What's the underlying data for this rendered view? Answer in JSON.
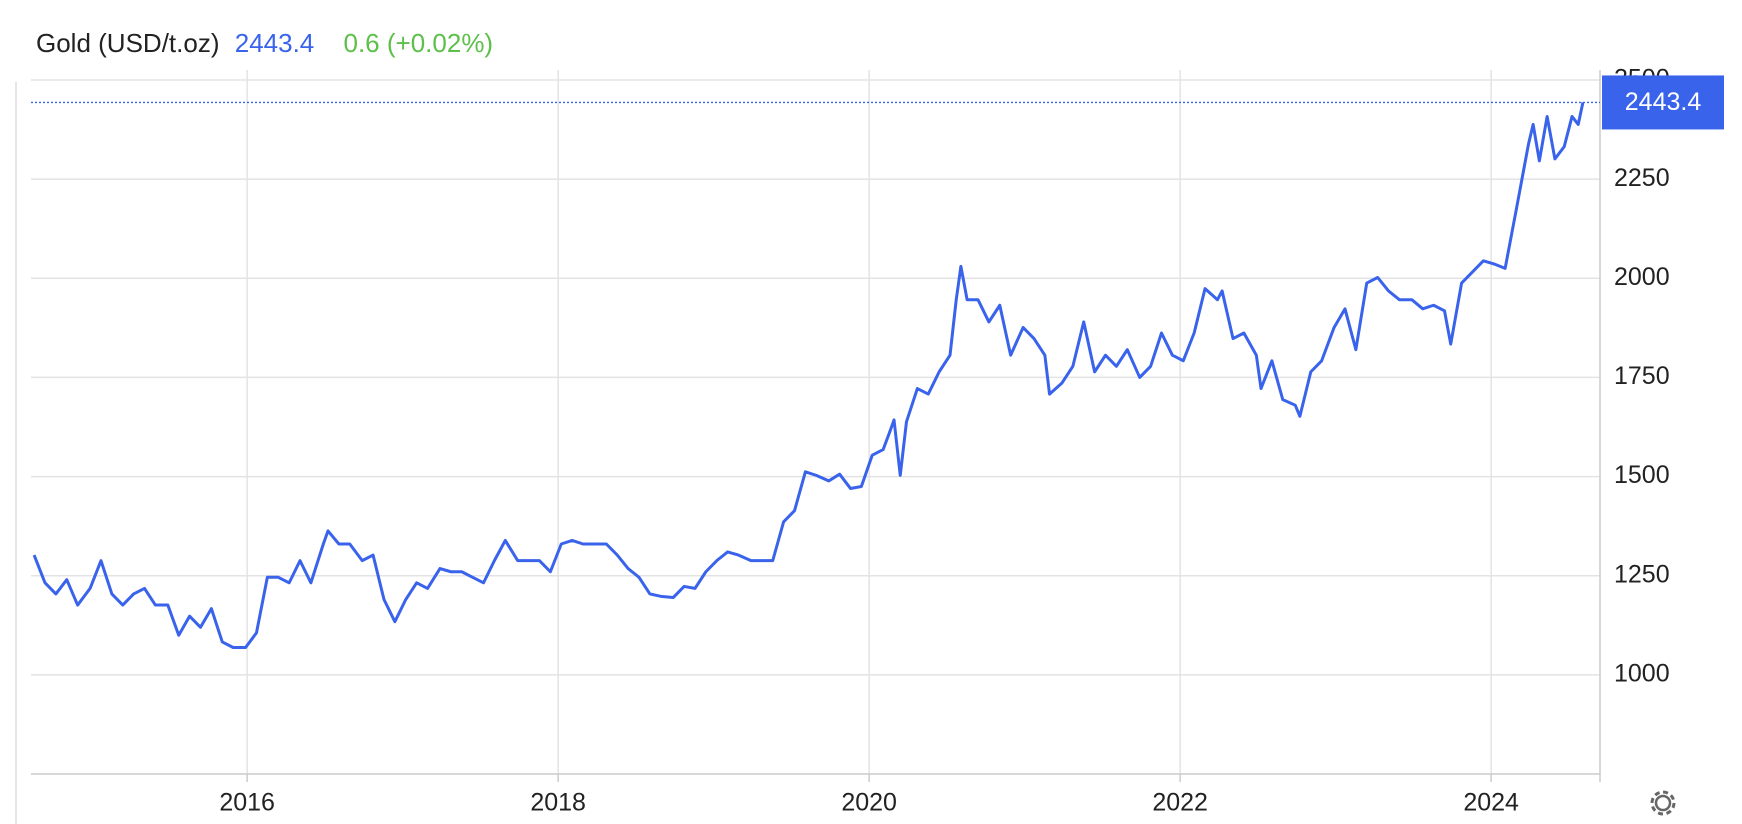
{
  "chart_data": {
    "type": "line",
    "price": 2443.4,
    "change": "0.6 (+0.02%)",
    "xlim": [
      2014.61,
      2024.7
    ],
    "xticks": [
      2016,
      2018,
      2020,
      2022,
      2024
    ],
    "ylim": [
      750,
      2500
    ],
    "yticks": [
      1000,
      1250,
      1500,
      1750,
      2000,
      2250,
      2500
    ],
    "grid": true,
    "series": [
      {
        "name": "Gold (USD/t.oz)",
        "color": "#3a63ec",
        "x": [
          2014.63,
          2014.7,
          2014.77,
          2014.84,
          2014.91,
          2014.99,
          2015.06,
          2015.13,
          2015.2,
          2015.27,
          2015.34,
          2015.41,
          2015.49,
          2015.56,
          2015.63,
          2015.7,
          2015.77,
          2015.84,
          2015.91,
          2015.99,
          2016.06,
          2016.13,
          2016.2,
          2016.27,
          2016.34,
          2016.41,
          2016.49,
          2016.52,
          2016.59,
          2016.66,
          2016.74,
          2016.81,
          2016.88,
          2016.95,
          2017.02,
          2017.09,
          2017.16,
          2017.24,
          2017.31,
          2017.38,
          2017.45,
          2017.52,
          2017.59,
          2017.66,
          2017.74,
          2017.81,
          2017.88,
          2017.95,
          2018.02,
          2018.09,
          2018.16,
          2018.24,
          2018.31,
          2018.38,
          2018.45,
          2018.52,
          2018.59,
          2018.66,
          2018.74,
          2018.81,
          2018.88,
          2018.95,
          2019.02,
          2019.09,
          2019.16,
          2019.24,
          2019.31,
          2019.38,
          2019.45,
          2019.52,
          2019.59,
          2019.66,
          2019.74,
          2019.81,
          2019.88,
          2019.95,
          2020.02,
          2020.09,
          2020.13,
          2020.16,
          2020.2,
          2020.24,
          2020.31,
          2020.38,
          2020.45,
          2020.52,
          2020.56,
          2020.59,
          2020.63,
          2020.7,
          2020.77,
          2020.84,
          2020.91,
          2020.99,
          2021.06,
          2021.13,
          2021.16,
          2021.24,
          2021.31,
          2021.38,
          2021.45,
          2021.52,
          2021.59,
          2021.66,
          2021.74,
          2021.81,
          2021.88,
          2021.95,
          2022.02,
          2022.09,
          2022.16,
          2022.24,
          2022.27,
          2022.34,
          2022.41,
          2022.49,
          2022.52,
          2022.59,
          2022.66,
          2022.74,
          2022.77,
          2022.84,
          2022.91,
          2022.99,
          2023.06,
          2023.13,
          2023.2,
          2023.27,
          2023.34,
          2023.41,
          2023.49,
          2023.56,
          2023.63,
          2023.7,
          2023.74,
          2023.81,
          2023.88,
          2023.95,
          2024.02,
          2024.09,
          2024.16,
          2024.24,
          2024.27,
          2024.31,
          2024.36,
          2024.41,
          2024.47,
          2024.52,
          2024.56,
          2024.59
        ],
        "values": [
          1302,
          1232,
          1204,
          1240,
          1176,
          1218,
          1288,
          1204,
          1176,
          1204,
          1218,
          1176,
          1176,
          1100,
          1148,
          1120,
          1167,
          1083,
          1069,
          1069,
          1106,
          1246,
          1246,
          1232,
          1288,
          1232,
          1330,
          1363,
          1330,
          1330,
          1288,
          1302,
          1190,
          1134,
          1190,
          1232,
          1218,
          1268,
          1260,
          1260,
          1246,
          1232,
          1288,
          1339,
          1288,
          1288,
          1288,
          1260,
          1330,
          1339,
          1330,
          1330,
          1330,
          1302,
          1268,
          1246,
          1204,
          1198,
          1195,
          1223,
          1218,
          1260,
          1288,
          1310,
          1302,
          1288,
          1288,
          1288,
          1386,
          1414,
          1512,
          1503,
          1489,
          1506,
          1470,
          1475,
          1554,
          1568,
          1610,
          1643,
          1503,
          1638,
          1722,
          1708,
          1764,
          1806,
          1946,
          2030,
          1946,
          1946,
          1890,
          1932,
          1806,
          1876,
          1848,
          1806,
          1708,
          1736,
          1778,
          1890,
          1764,
          1806,
          1778,
          1820,
          1750,
          1778,
          1862,
          1806,
          1792,
          1862,
          1974,
          1946,
          1968,
          1848,
          1862,
          1806,
          1722,
          1792,
          1694,
          1680,
          1652,
          1764,
          1792,
          1876,
          1923,
          1820,
          1988,
          2002,
          1968,
          1946,
          1946,
          1923,
          1932,
          1918,
          1834,
          1988,
          2016,
          2044,
          2036,
          2025,
          2170,
          2338,
          2388,
          2296,
          2408,
          2301,
          2332,
          2408,
          2388,
          2443.4
        ]
      }
    ]
  }
}
